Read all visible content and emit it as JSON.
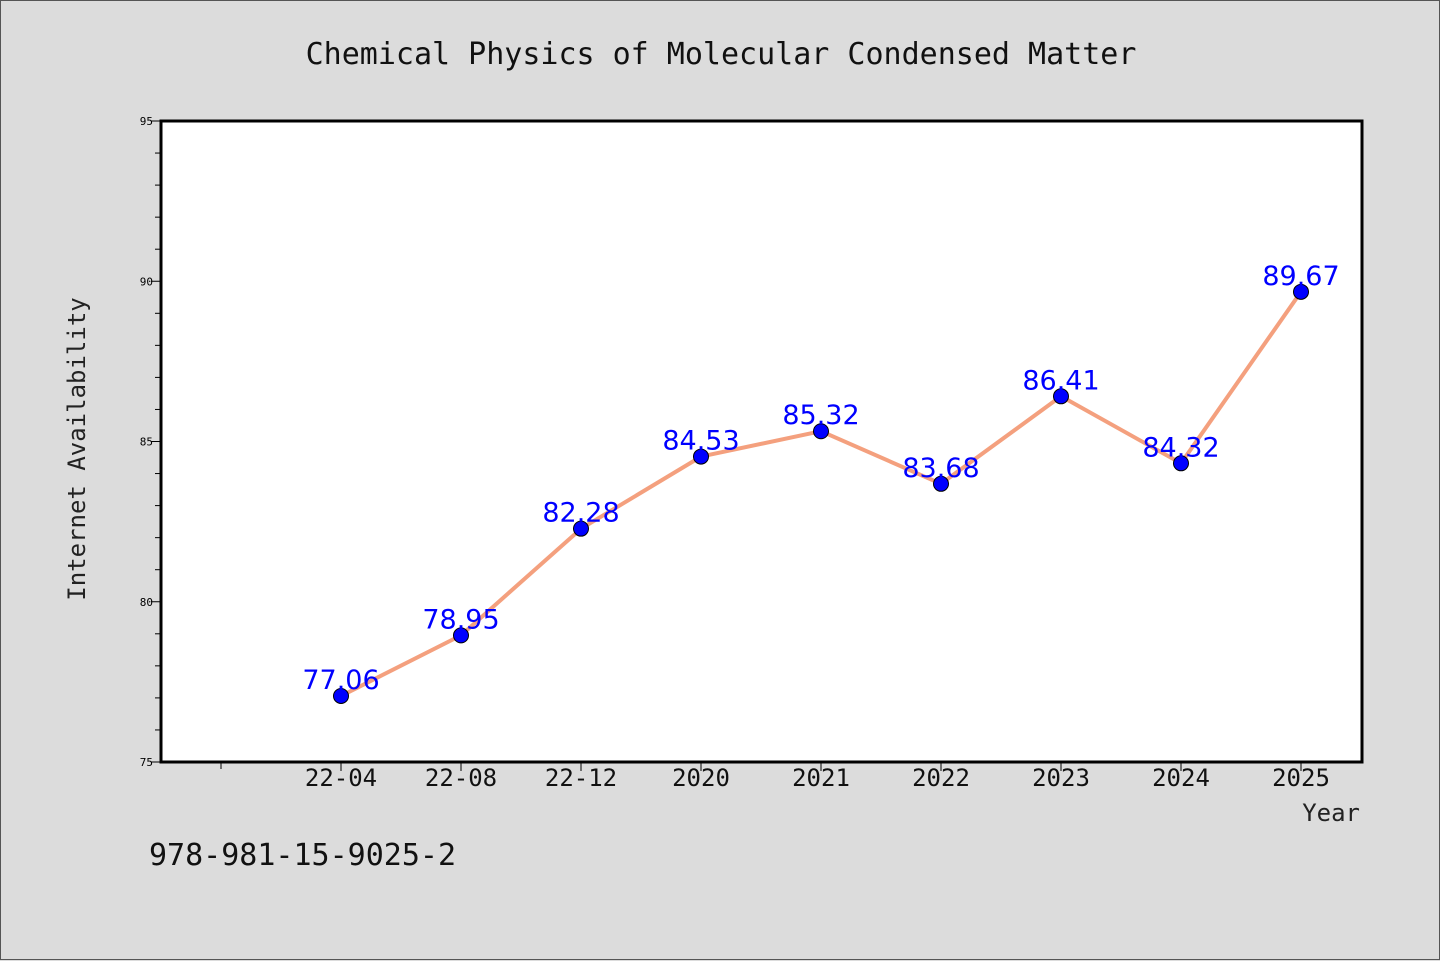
{
  "chart_data": {
    "type": "line",
    "title": "Chemical Physics of Molecular Condensed Matter",
    "xlabel": "Year",
    "ylabel": "Internet Availability",
    "categories": [
      "22-04",
      "22-08",
      "22-12",
      "2020",
      "2021",
      "2022",
      "2023",
      "2024",
      "2025"
    ],
    "series": [
      {
        "values": [
          77.06,
          78.95,
          82.28,
          84.53,
          85.32,
          83.68,
          86.41,
          84.32,
          89.67
        ],
        "labels": [
          "77.06",
          "78.95",
          "82.28",
          "84.53",
          "85.32",
          "83.68",
          "86.41",
          "84.32",
          "89.67"
        ],
        "line_color": "#f4a07e",
        "marker_color": "#0000ff"
      }
    ],
    "ylim": [
      75,
      95
    ],
    "yticks": [
      "75",
      "80",
      "85",
      "90",
      "95"
    ],
    "grid": false,
    "legend": "none"
  },
  "caption": "978-981-15-9025-2",
  "colors": {
    "background": "#dcdcdc",
    "plot_area": "#ffffff",
    "line": "#f4a07e",
    "marker": "#0000ff",
    "data_label": "#0000ff"
  }
}
